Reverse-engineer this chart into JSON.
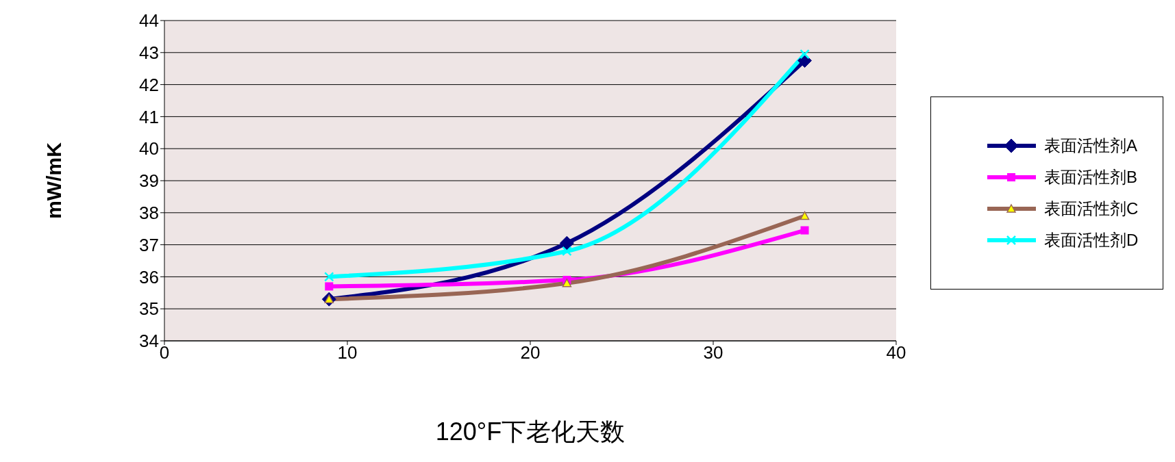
{
  "chart_data": {
    "type": "line",
    "xlabel": "120°F下老化天数",
    "ylabel": "mW/mK",
    "xlim": [
      0,
      40
    ],
    "xticks": [
      0,
      10,
      20,
      30,
      40
    ],
    "ylim": [
      34,
      44
    ],
    "yticks": [
      34,
      35,
      36,
      37,
      38,
      39,
      40,
      41,
      42,
      43,
      44
    ],
    "grid": "y",
    "legend": "right",
    "line_style": "solid",
    "x": [
      9,
      22,
      35
    ],
    "series": [
      {
        "name": "表面活性剂A",
        "color": "#000080",
        "marker": "diamond",
        "values": [
          35.3,
          37.05,
          42.75
        ]
      },
      {
        "name": "表面活性剂B",
        "color": "#ff00ff",
        "marker": "square",
        "values": [
          35.7,
          35.9,
          37.45
        ]
      },
      {
        "name": "表面活性剂C",
        "color": "#996655",
        "marker": "triangle",
        "values": [
          35.3,
          35.8,
          37.9
        ]
      },
      {
        "name": "表面活性剂D",
        "color": "#00ffff",
        "marker": "cross",
        "values": [
          36.0,
          36.8,
          42.95
        ]
      }
    ]
  }
}
